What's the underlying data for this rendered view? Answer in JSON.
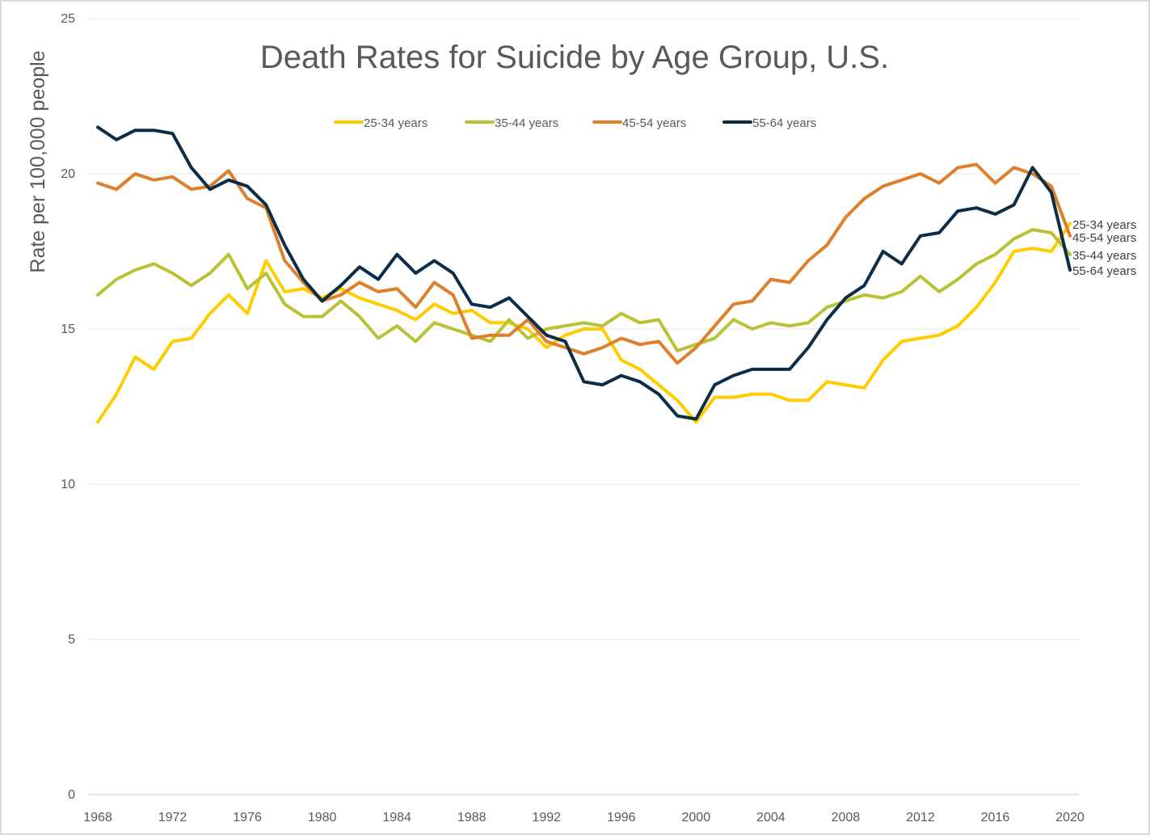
{
  "chart_data": {
    "type": "line",
    "title": "Death Rates for Suicide by Age Group, U.S.",
    "xlabel": "",
    "ylabel": "Rate per 100,000 people",
    "ylim": [
      0,
      25
    ],
    "xlim": [
      1968,
      2020
    ],
    "yticks": [
      0,
      5,
      10,
      15,
      20,
      25
    ],
    "xticks": [
      1968,
      1972,
      1976,
      1980,
      1984,
      1988,
      1992,
      1996,
      2000,
      2004,
      2008,
      2012,
      2016,
      2020
    ],
    "grid": true,
    "legend_position": "top",
    "x": [
      1968,
      1969,
      1970,
      1971,
      1972,
      1973,
      1974,
      1975,
      1976,
      1977,
      1978,
      1979,
      1980,
      1981,
      1982,
      1983,
      1984,
      1985,
      1986,
      1987,
      1988,
      1989,
      1990,
      1991,
      1992,
      1993,
      1994,
      1995,
      1996,
      1997,
      1998,
      1999,
      2000,
      2001,
      2002,
      2003,
      2004,
      2005,
      2006,
      2007,
      2008,
      2009,
      2010,
      2011,
      2012,
      2013,
      2014,
      2015,
      2016,
      2017,
      2018,
      2019,
      2020
    ],
    "series": [
      {
        "name": "25-34 years",
        "color": "#ffcc00",
        "end_label": "25-34 years",
        "values": [
          12.0,
          12.9,
          14.1,
          13.7,
          14.6,
          14.7,
          15.5,
          16.1,
          15.5,
          17.2,
          16.2,
          16.3,
          16.0,
          16.3,
          16.0,
          15.8,
          15.6,
          15.3,
          15.8,
          15.5,
          15.6,
          15.2,
          15.2,
          15.0,
          14.4,
          14.8,
          15.0,
          15.0,
          14.0,
          13.7,
          13.2,
          12.7,
          12.0,
          12.8,
          12.8,
          12.9,
          12.9,
          12.7,
          12.7,
          13.3,
          13.2,
          13.1,
          14.0,
          14.6,
          14.7,
          14.8,
          15.1,
          15.7,
          16.5,
          17.5,
          17.6,
          17.5,
          18.4
        ]
      },
      {
        "name": "35-44 years",
        "color": "#b8c234",
        "end_label": "35-44 years",
        "values": [
          16.1,
          16.6,
          16.9,
          17.1,
          16.8,
          16.4,
          16.8,
          17.4,
          16.3,
          16.8,
          15.8,
          15.4,
          15.4,
          15.9,
          15.4,
          14.7,
          15.1,
          14.6,
          15.2,
          15.0,
          14.8,
          14.6,
          15.3,
          14.7,
          15.0,
          15.1,
          15.2,
          15.1,
          15.5,
          15.2,
          15.3,
          14.3,
          14.5,
          14.7,
          15.3,
          15.0,
          15.2,
          15.1,
          15.2,
          15.7,
          15.9,
          16.1,
          16.0,
          16.2,
          16.7,
          16.2,
          16.6,
          17.1,
          17.4,
          17.9,
          18.2,
          18.1,
          17.4
        ]
      },
      {
        "name": "45-54 years",
        "color": "#e07f2a",
        "end_label": "45-54 years",
        "values": [
          19.7,
          19.5,
          20.0,
          19.8,
          19.9,
          19.5,
          19.6,
          20.1,
          19.2,
          18.9,
          17.2,
          16.5,
          15.9,
          16.1,
          16.5,
          16.2,
          16.3,
          15.7,
          16.5,
          16.1,
          14.7,
          14.8,
          14.8,
          15.3,
          14.6,
          14.4,
          14.2,
          14.4,
          14.7,
          14.5,
          14.6,
          13.9,
          14.4,
          15.1,
          15.8,
          15.9,
          16.6,
          16.5,
          17.2,
          17.7,
          18.6,
          19.2,
          19.6,
          19.8,
          20.0,
          19.7,
          20.2,
          20.3,
          19.7,
          20.2,
          20.0,
          19.6,
          18.0
        ]
      },
      {
        "name": "55-64 years",
        "color": "#0b2d48",
        "end_label": "55-64 years",
        "values": [
          21.5,
          21.1,
          21.4,
          21.4,
          21.3,
          20.2,
          19.5,
          19.8,
          19.6,
          19.0,
          17.7,
          16.6,
          15.9,
          16.4,
          17.0,
          16.6,
          17.4,
          16.8,
          17.2,
          16.8,
          15.8,
          15.7,
          16.0,
          15.4,
          14.8,
          14.6,
          13.3,
          13.2,
          13.5,
          13.3,
          12.9,
          12.2,
          12.1,
          13.2,
          13.5,
          13.7,
          13.7,
          13.7,
          14.4,
          15.3,
          16.0,
          16.4,
          17.5,
          17.1,
          18.0,
          18.1,
          18.8,
          18.9,
          18.7,
          19.0,
          20.2,
          19.4,
          16.9
        ]
      }
    ]
  }
}
